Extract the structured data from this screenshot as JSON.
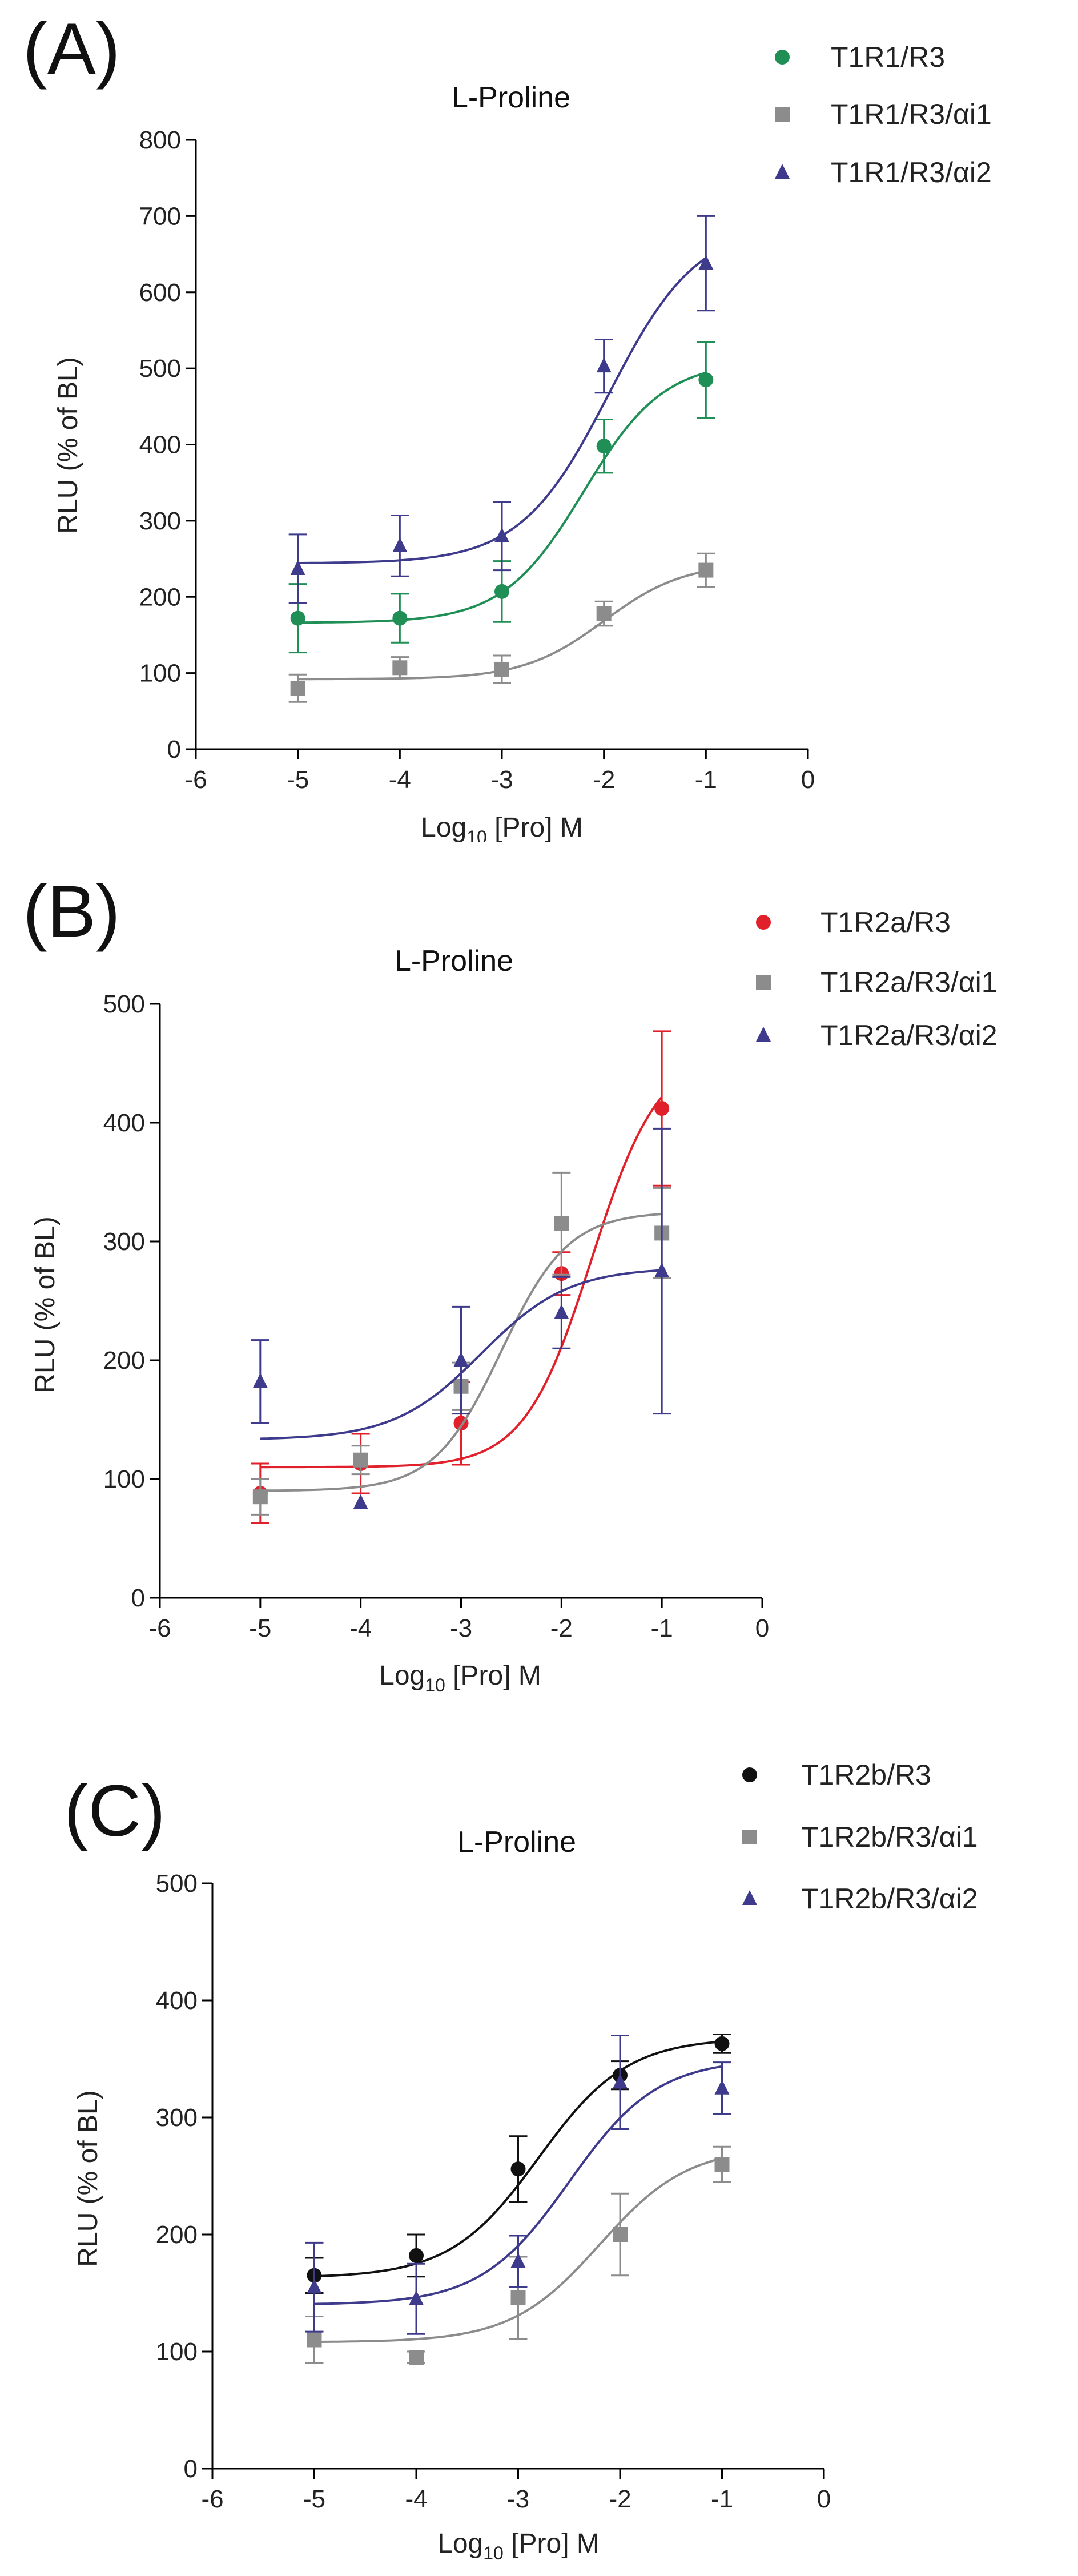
{
  "chart_data": [
    {
      "panel_label": "(A)",
      "type": "scatter",
      "title": "L-Proline",
      "xlabel": {
        "prefix": "Log",
        "subscript": "10",
        "suffix": " [Pro] M"
      },
      "ylabel": "RLU (% of BL)",
      "xlim": [
        -6,
        0
      ],
      "ylim": [
        0,
        800
      ],
      "xticks": [
        -6,
        -5,
        -4,
        -3,
        -2,
        -1,
        0
      ],
      "yticks": [
        0,
        100,
        200,
        300,
        400,
        500,
        600,
        700,
        800
      ],
      "legend_position": "top-right",
      "series": [
        {
          "name": "T1R1/R3",
          "marker": "circle",
          "color": "#1f8f55",
          "x": [
            -5,
            -4,
            -3,
            -2,
            -1
          ],
          "y": [
            172,
            172,
            207,
            398,
            485
          ],
          "err": [
            45,
            32,
            40,
            35,
            50
          ],
          "fit": {
            "bottom": 166,
            "top": 510,
            "logEC50": -2.2,
            "hill": 1.1
          }
        },
        {
          "name": "T1R1/R3/αi1",
          "marker": "square",
          "color": "#8c8c8c",
          "x": [
            -5,
            -4,
            -3,
            -2,
            -1
          ],
          "y": [
            80,
            107,
            105,
            178,
            235
          ],
          "err": [
            18,
            14,
            18,
            16,
            22
          ],
          "fit": {
            "bottom": 92,
            "top": 245,
            "logEC50": -2.0,
            "hill": 1.1
          }
        },
        {
          "name": "T1R1/R3/αi2",
          "marker": "triangle",
          "color": "#3e3a8c",
          "x": [
            -5,
            -4,
            -3,
            -2,
            -1
          ],
          "y": [
            237,
            267,
            280,
            503,
            638
          ],
          "err": [
            45,
            40,
            45,
            35,
            62
          ],
          "fit": {
            "bottom": 244,
            "top": 690,
            "logEC50": -1.95,
            "hill": 1.0
          }
        }
      ]
    },
    {
      "panel_label": "(B)",
      "type": "scatter",
      "title": "L-Proline",
      "xlabel": {
        "prefix": "Log",
        "subscript": "10",
        "suffix": " [Pro] M"
      },
      "ylabel": "RLU (% of BL)",
      "xlim": [
        -6,
        0
      ],
      "ylim": [
        0,
        500
      ],
      "xticks": [
        -6,
        -5,
        -4,
        -3,
        -2,
        -1,
        0
      ],
      "yticks": [
        0,
        100,
        200,
        300,
        400,
        500
      ],
      "legend_position": "top-right",
      "series": [
        {
          "name": "T1R2a/R3",
          "marker": "circle",
          "color": "#e0202a",
          "x": [
            -5,
            -4,
            -3,
            -2,
            -1
          ],
          "y": [
            88,
            113,
            147,
            273,
            412
          ],
          "err": [
            25,
            25,
            35,
            18,
            65
          ],
          "fit": {
            "bottom": 110,
            "top": 460,
            "logEC50": -1.7,
            "hill": 1.3
          }
        },
        {
          "name": "T1R2a/R3/αi1",
          "marker": "square",
          "color": "#8c8c8c",
          "x": [
            -5,
            -4,
            -3,
            -2,
            -1
          ],
          "y": [
            85,
            116,
            178,
            315,
            307
          ],
          "err": [
            15,
            12,
            20,
            43,
            38
          ],
          "fit": {
            "bottom": 90,
            "top": 325,
            "logEC50": -2.6,
            "hill": 1.3
          }
        },
        {
          "name": "T1R2a/R3/αi2",
          "marker": "triangle",
          "color": "#3e3a8c",
          "x": [
            -5,
            -4,
            -3,
            -2,
            -1
          ],
          "y": [
            182,
            80,
            200,
            240,
            275
          ],
          "err": [
            35,
            0,
            45,
            30,
            120
          ],
          "fit": {
            "bottom": 133,
            "top": 278,
            "logEC50": -2.8,
            "hill": 1.0
          }
        }
      ]
    },
    {
      "panel_label": "(C)",
      "type": "scatter",
      "title": "L-Proline",
      "xlabel": {
        "prefix": "Log",
        "subscript": "10",
        "suffix": " [Pro] M"
      },
      "ylabel": "RLU (% of BL)",
      "xlim": [
        -6,
        0
      ],
      "ylim": [
        0,
        500
      ],
      "xticks": [
        -6,
        -5,
        -4,
        -3,
        -2,
        -1,
        0
      ],
      "yticks": [
        0,
        100,
        200,
        300,
        400,
        500
      ],
      "legend_position": "top-right",
      "series": [
        {
          "name": "T1R2b/R3",
          "marker": "circle",
          "color": "#111111",
          "x": [
            -5,
            -4,
            -3,
            -2,
            -1
          ],
          "y": [
            165,
            182,
            256,
            336,
            363
          ],
          "err": [
            15,
            18,
            28,
            12,
            8
          ],
          "fit": {
            "bottom": 163,
            "top": 368,
            "logEC50": -2.8,
            "hill": 1.0
          }
        },
        {
          "name": "T1R2b/R3/αi1",
          "marker": "square",
          "color": "#8c8c8c",
          "x": [
            -5,
            -4,
            -3,
            -2,
            -1
          ],
          "y": [
            110,
            95,
            146,
            200,
            260
          ],
          "err": [
            20,
            5,
            35,
            35,
            15
          ],
          "fit": {
            "bottom": 108,
            "top": 275,
            "logEC50": -2.2,
            "hill": 1.0
          }
        },
        {
          "name": "T1R2b/R3/αi2",
          "marker": "triangle",
          "color": "#3e3a8c",
          "x": [
            -5,
            -4,
            -3,
            -2,
            -1
          ],
          "y": [
            155,
            145,
            177,
            330,
            325
          ],
          "err": [
            38,
            30,
            22,
            40,
            22
          ],
          "fit": {
            "bottom": 140,
            "top": 350,
            "logEC50": -2.5,
            "hill": 1.0
          }
        }
      ]
    }
  ]
}
